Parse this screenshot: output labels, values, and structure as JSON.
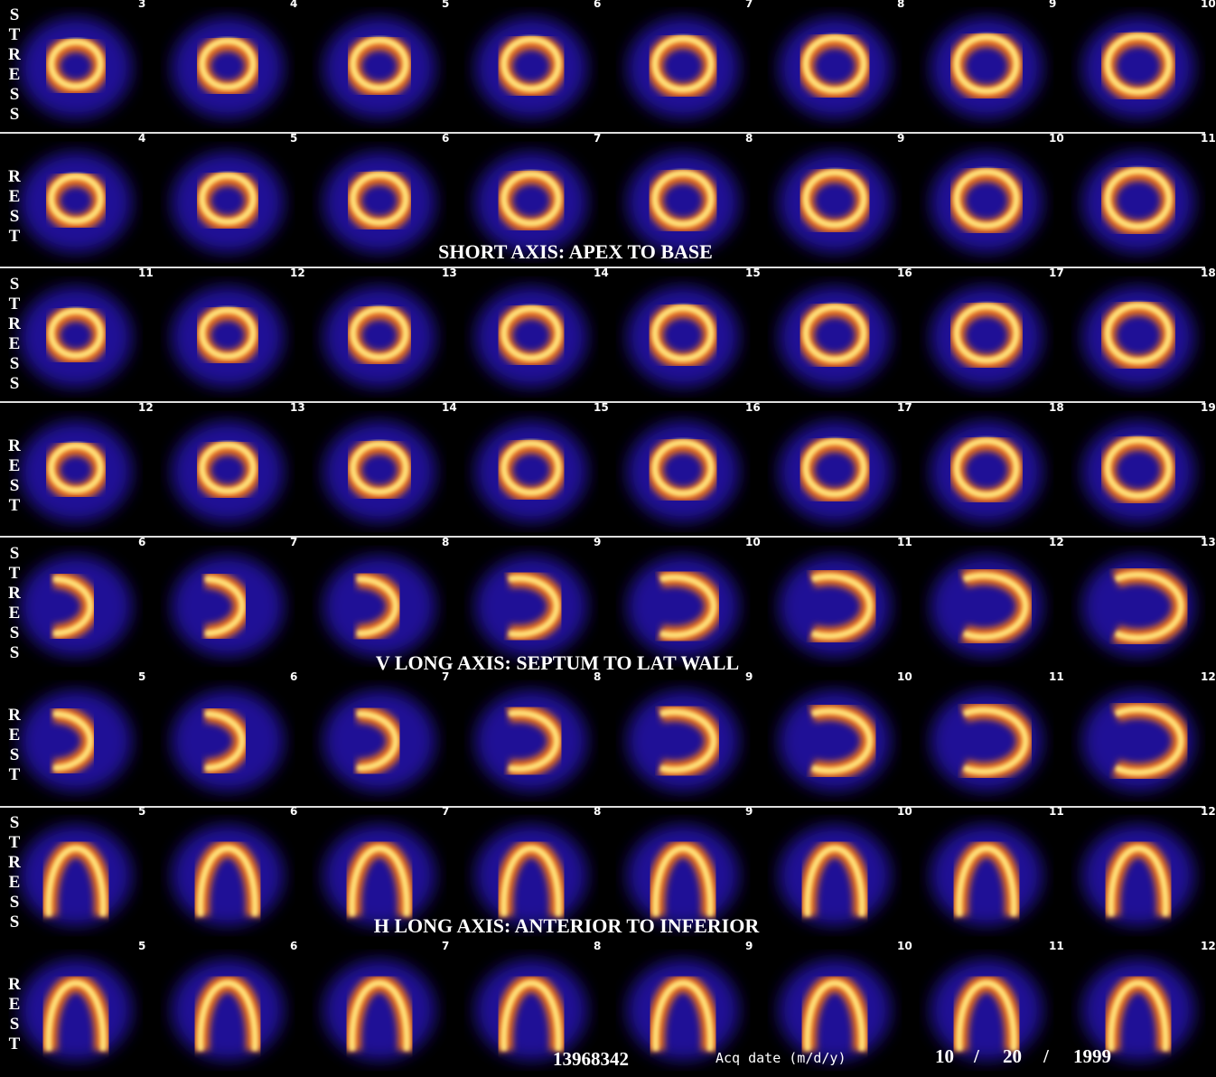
{
  "rows": [
    {
      "label": "STRESS",
      "slices": [
        3,
        4,
        5,
        6,
        7,
        8,
        9,
        10
      ]
    },
    {
      "label": "REST",
      "slices": [
        4,
        5,
        6,
        7,
        8,
        9,
        10,
        11
      ]
    },
    {
      "label": "STRESS",
      "slices": [
        11,
        12,
        13,
        14,
        15,
        16,
        17,
        18
      ]
    },
    {
      "label": "REST",
      "slices": [
        12,
        13,
        14,
        15,
        16,
        17,
        18,
        19
      ]
    },
    {
      "label": "STRESS",
      "slices": [
        6,
        7,
        8,
        9,
        10,
        11,
        12,
        13
      ]
    },
    {
      "label": "REST",
      "slices": [
        5,
        6,
        7,
        8,
        9,
        10,
        11,
        12
      ]
    },
    {
      "label": "STRESS",
      "slices": [
        5,
        6,
        7,
        8,
        9,
        10,
        11,
        12
      ]
    },
    {
      "label": "REST",
      "slices": [
        5,
        6,
        7,
        8,
        9,
        10,
        11,
        12
      ]
    }
  ],
  "sections": [
    {
      "title": "SHORT AXIS: APEX TO BASE"
    },
    {
      "title": "V LONG AXIS: SEPTUM TO LAT WALL"
    },
    {
      "title": "H LONG AXIS: ANTERIOR TO INFERIOR"
    }
  ],
  "footer": {
    "patient_id": "13968342",
    "acq_date_label": "Acq date (m/d/y)",
    "month": "10",
    "day": "20",
    "year": "1999",
    "separator": "/"
  }
}
